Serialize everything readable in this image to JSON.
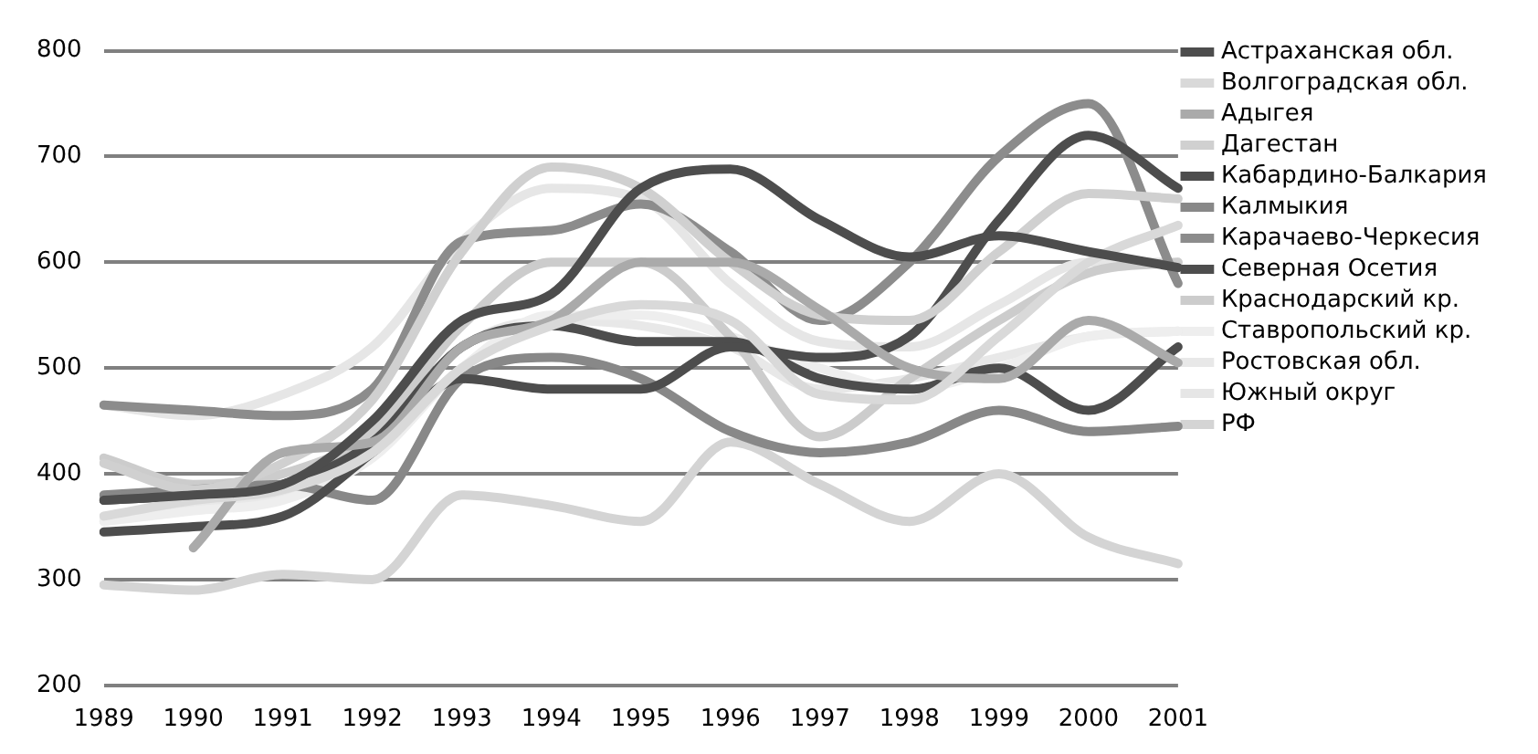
{
  "chart_data": {
    "type": "line",
    "categories": [
      "1989",
      "1990",
      "1991",
      "1992",
      "1993",
      "1994",
      "1995",
      "1996",
      "1997",
      "1998",
      "1999",
      "2000",
      "2001"
    ],
    "ylim": [
      200,
      800
    ],
    "yticks": [
      200,
      300,
      400,
      500,
      600,
      700,
      800
    ],
    "grid": "y",
    "legend": "right",
    "marker": "none",
    "line_style": "solid",
    "series": [
      {
        "name": "Астраханская обл.",
        "color": "#4d4d4d",
        "values": [
          375,
          380,
          390,
          450,
          545,
          570,
          670,
          688,
          640,
          605,
          625,
          610,
          595
        ]
      },
      {
        "name": "Волгоградская обл.",
        "color": "#d9d9d9",
        "values": [
          360,
          375,
          385,
          420,
          500,
          540,
          560,
          545,
          475,
          470,
          530,
          600,
          635
        ]
      },
      {
        "name": "Адыгея",
        "color": "#aaaaaa",
        "values": [
          null,
          330,
          420,
          430,
          520,
          545,
          600,
          600,
          555,
          500,
          490,
          545,
          505
        ]
      },
      {
        "name": "Дагестан",
        "color": "#d0d0d0",
        "values": [
          410,
          385,
          410,
          470,
          610,
          690,
          670,
          600,
          550,
          545,
          610,
          665,
          660
        ]
      },
      {
        "name": "Кабардино-Балкария",
        "color": "#4d4d4d",
        "values": [
          345,
          350,
          360,
          420,
          490,
          480,
          480,
          520,
          510,
          530,
          640,
          720,
          670
        ]
      },
      {
        "name": "Калмыкия",
        "color": "#888888",
        "values": [
          380,
          385,
          390,
          375,
          490,
          510,
          490,
          440,
          420,
          430,
          460,
          440,
          445
        ]
      },
      {
        "name": "Карачаево-Черкесия",
        "color": "#8c8c8c",
        "values": [
          465,
          460,
          455,
          480,
          620,
          630,
          655,
          610,
          545,
          600,
          700,
          750,
          580
        ]
      },
      {
        "name": "Северная Осетия",
        "color": "#4d4d4d",
        "values": [
          375,
          380,
          390,
          430,
          520,
          540,
          525,
          525,
          490,
          480,
          500,
          460,
          520
        ]
      },
      {
        "name": "Краснодарский кр.",
        "color": "#cccccc",
        "values": [
          415,
          390,
          400,
          440,
          540,
          600,
          600,
          530,
          435,
          490,
          545,
          590,
          600
        ]
      },
      {
        "name": "Ставропольский кр.",
        "color": "#eeeeee",
        "values": [
          355,
          365,
          375,
          415,
          500,
          550,
          550,
          530,
          500,
          480,
          500,
          530,
          535
        ]
      },
      {
        "name": "Ростовская обл.",
        "color": "#e8e8e8",
        "values": [
          355,
          370,
          380,
          430,
          520,
          545,
          540,
          520,
          480,
          490,
          510,
          530,
          535
        ]
      },
      {
        "name": "Южный округ",
        "color": "#e6e6e6",
        "values": [
          465,
          455,
          475,
          520,
          620,
          670,
          660,
          580,
          525,
          520,
          560,
          600,
          600
        ]
      },
      {
        "name": "РФ",
        "color": "#d4d4d4",
        "values": [
          295,
          290,
          305,
          300,
          380,
          370,
          355,
          430,
          390,
          355,
          400,
          340,
          315
        ]
      }
    ]
  }
}
